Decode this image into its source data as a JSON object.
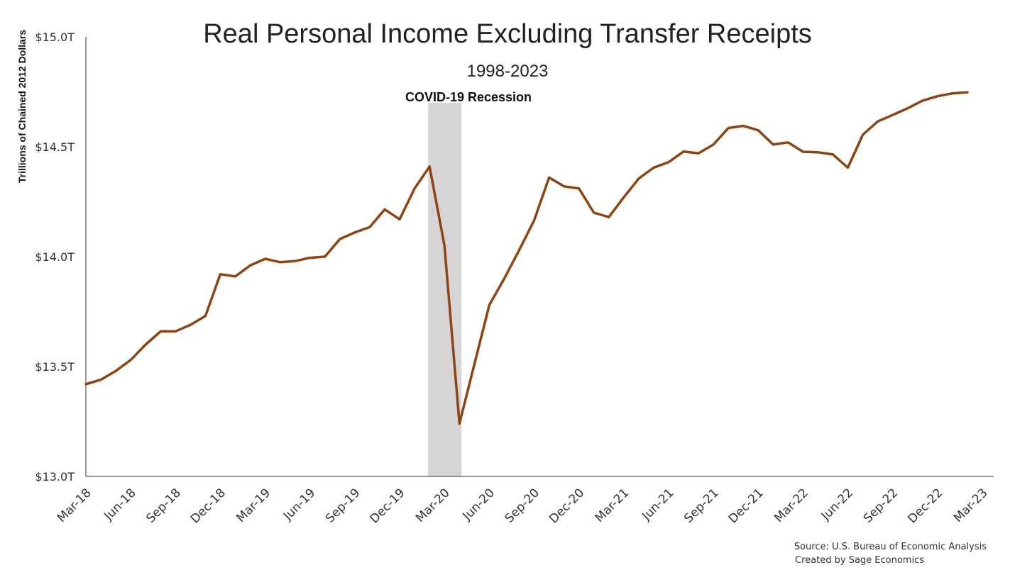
{
  "chart_data": {
    "type": "line",
    "title": "Real Personal Income Excluding Transfer Receipts",
    "subtitle": "1998-2023",
    "ylabel": "Trillions of Chained 2012 Dollars",
    "xlabel": "",
    "ylim": [
      13.0,
      15.0
    ],
    "yticks": [
      {
        "value": 13.0,
        "label": "$13.0T"
      },
      {
        "value": 13.5,
        "label": "$13.5T"
      },
      {
        "value": 14.0,
        "label": "$14.0T"
      },
      {
        "value": 14.5,
        "label": "$14.5T"
      },
      {
        "value": 15.0,
        "label": "$15.0T"
      }
    ],
    "xticks": [
      {
        "month": "2018-03",
        "label": "Mar-18"
      },
      {
        "month": "2018-06",
        "label": "Jun-18"
      },
      {
        "month": "2018-09",
        "label": "Sep-18"
      },
      {
        "month": "2018-12",
        "label": "Dec-18"
      },
      {
        "month": "2019-03",
        "label": "Mar-19"
      },
      {
        "month": "2019-06",
        "label": "Jun-19"
      },
      {
        "month": "2019-09",
        "label": "Sep-19"
      },
      {
        "month": "2019-12",
        "label": "Dec-19"
      },
      {
        "month": "2020-03",
        "label": "Mar-20"
      },
      {
        "month": "2020-06",
        "label": "Jun-20"
      },
      {
        "month": "2020-09",
        "label": "Sep-20"
      },
      {
        "month": "2020-12",
        "label": "Dec-20"
      },
      {
        "month": "2021-03",
        "label": "Mar-21"
      },
      {
        "month": "2021-06",
        "label": "Jun-21"
      },
      {
        "month": "2021-09",
        "label": "Sep-21"
      },
      {
        "month": "2021-12",
        "label": "Dec-21"
      },
      {
        "month": "2022-03",
        "label": "Mar-22"
      },
      {
        "month": "2022-06",
        "label": "Jun-22"
      },
      {
        "month": "2022-09",
        "label": "Sep-22"
      },
      {
        "month": "2022-12",
        "label": "Dec-22"
      },
      {
        "month": "2023-03",
        "label": "Mar-23"
      }
    ],
    "series": [
      {
        "color": "#8B4513",
        "points": [
          {
            "month": "2018-03",
            "value": 13.42
          },
          {
            "month": "2018-04",
            "value": 13.44
          },
          {
            "month": "2018-05",
            "value": 13.48
          },
          {
            "month": "2018-06",
            "value": 13.53
          },
          {
            "month": "2018-07",
            "value": 13.6
          },
          {
            "month": "2018-08",
            "value": 13.66
          },
          {
            "month": "2018-09",
            "value": 13.66
          },
          {
            "month": "2018-10",
            "value": 13.69
          },
          {
            "month": "2018-11",
            "value": 13.73
          },
          {
            "month": "2018-12",
            "value": 13.92
          },
          {
            "month": "2019-01",
            "value": 13.91
          },
          {
            "month": "2019-02",
            "value": 13.96
          },
          {
            "month": "2019-03",
            "value": 13.99
          },
          {
            "month": "2019-04",
            "value": 13.975
          },
          {
            "month": "2019-05",
            "value": 13.98
          },
          {
            "month": "2019-06",
            "value": 13.995
          },
          {
            "month": "2019-07",
            "value": 14.0
          },
          {
            "month": "2019-08",
            "value": 14.08
          },
          {
            "month": "2019-09",
            "value": 14.11
          },
          {
            "month": "2019-10",
            "value": 14.135
          },
          {
            "month": "2019-11",
            "value": 14.215
          },
          {
            "month": "2019-12",
            "value": 14.17
          },
          {
            "month": "2020-01",
            "value": 14.31
          },
          {
            "month": "2020-02",
            "value": 14.41
          },
          {
            "month": "2020-03",
            "value": 14.05
          },
          {
            "month": "2020-04",
            "value": 13.24
          },
          {
            "month": "2020-05",
            "value": 13.51
          },
          {
            "month": "2020-06",
            "value": 13.78
          },
          {
            "month": "2020-07",
            "value": 13.9
          },
          {
            "month": "2020-08",
            "value": 14.03
          },
          {
            "month": "2020-09",
            "value": 14.165
          },
          {
            "month": "2020-10",
            "value": 14.36
          },
          {
            "month": "2020-11",
            "value": 14.32
          },
          {
            "month": "2020-12",
            "value": 14.31
          },
          {
            "month": "2021-01",
            "value": 14.2
          },
          {
            "month": "2021-02",
            "value": 14.18
          },
          {
            "month": "2021-03",
            "value": 14.27
          },
          {
            "month": "2021-04",
            "value": 14.355
          },
          {
            "month": "2021-05",
            "value": 14.405
          },
          {
            "month": "2021-06",
            "value": 14.43
          },
          {
            "month": "2021-07",
            "value": 14.478
          },
          {
            "month": "2021-08",
            "value": 14.47
          },
          {
            "month": "2021-09",
            "value": 14.51
          },
          {
            "month": "2021-10",
            "value": 14.585
          },
          {
            "month": "2021-11",
            "value": 14.595
          },
          {
            "month": "2021-12",
            "value": 14.575
          },
          {
            "month": "2022-01",
            "value": 14.51
          },
          {
            "month": "2022-02",
            "value": 14.52
          },
          {
            "month": "2022-03",
            "value": 14.477
          },
          {
            "month": "2022-04",
            "value": 14.475
          },
          {
            "month": "2022-05",
            "value": 14.465
          },
          {
            "month": "2022-06",
            "value": 14.405
          },
          {
            "month": "2022-07",
            "value": 14.555
          },
          {
            "month": "2022-08",
            "value": 14.615
          },
          {
            "month": "2022-09",
            "value": 14.645
          },
          {
            "month": "2022-10",
            "value": 14.675
          },
          {
            "month": "2022-11",
            "value": 14.71
          },
          {
            "month": "2022-12",
            "value": 14.73
          },
          {
            "month": "2023-01",
            "value": 14.743
          },
          {
            "month": "2023-02",
            "value": 14.748
          }
        ]
      }
    ],
    "shaded_regions": [
      {
        "label": "COVID-19 Recession",
        "start": "2020-02",
        "end": "2020-04",
        "color": "#d6d4d5"
      }
    ],
    "grid": false,
    "legend": "none",
    "source_lines": [
      "Source: U.S. Bureau of Economic Analysis",
      "Created by Sage Economics"
    ]
  }
}
